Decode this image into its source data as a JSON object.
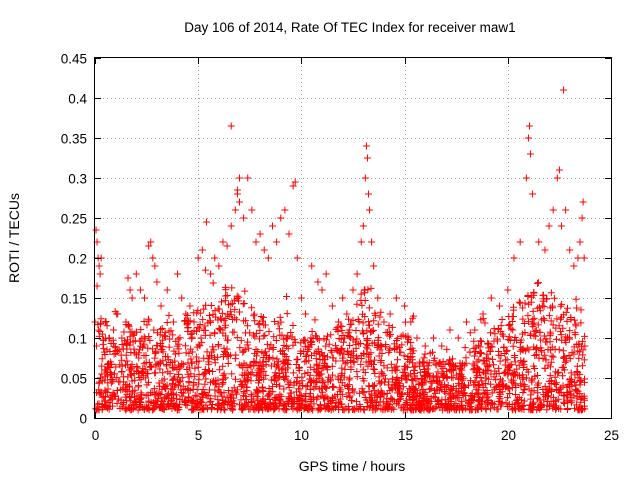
{
  "chart_data": {
    "type": "scatter",
    "title": "Day 106 of 2014, Rate Of TEC Index for receiver maw1",
    "xlabel": "GPS time / hours",
    "ylabel": "ROTI / TECUs",
    "xlim": [
      0,
      25
    ],
    "ylim": [
      0,
      0.45
    ],
    "xticks": [
      0,
      5,
      10,
      15,
      20,
      25
    ],
    "yticks": [
      0,
      0.05,
      0.1,
      0.15,
      0.2,
      0.25,
      0.3,
      0.35,
      0.4,
      0.45
    ],
    "xtick_labels": [
      "0",
      "5",
      "10",
      "15",
      "20",
      "25"
    ],
    "ytick_labels": [
      "0",
      "0.05",
      "0.1",
      "0.15",
      "0.2",
      "0.25",
      "0.3",
      "0.35",
      "0.4",
      "0.45"
    ],
    "grid": true,
    "marker": "+",
    "color": "#ff0000",
    "series": [
      {
        "name": "ROTI",
        "points": [
          [
            0.05,
            0.235
          ],
          [
            0.1,
            0.22
          ],
          [
            0.15,
            0.2
          ],
          [
            0.2,
            0.19
          ],
          [
            0.1,
            0.165
          ],
          [
            0.25,
            0.18
          ],
          [
            0.3,
            0.2
          ],
          [
            0.0,
            0.12
          ],
          [
            0.5,
            0.12
          ],
          [
            0.7,
            0.1
          ],
          [
            0.9,
            0.11
          ],
          [
            1.1,
            0.13
          ],
          [
            1.3,
            0.1
          ],
          [
            1.5,
            0.12
          ],
          [
            1.6,
            0.175
          ],
          [
            1.7,
            0.16
          ],
          [
            1.8,
            0.15
          ],
          [
            2.0,
            0.18
          ],
          [
            2.2,
            0.16
          ],
          [
            2.4,
            0.15
          ],
          [
            2.6,
            0.215
          ],
          [
            2.7,
            0.22
          ],
          [
            2.8,
            0.2
          ],
          [
            2.9,
            0.19
          ],
          [
            3.0,
            0.17
          ],
          [
            3.2,
            0.14
          ],
          [
            3.5,
            0.16
          ],
          [
            3.8,
            0.12
          ],
          [
            4.0,
            0.18
          ],
          [
            4.2,
            0.15
          ],
          [
            4.4,
            0.13
          ],
          [
            4.6,
            0.14
          ],
          [
            4.8,
            0.12
          ],
          [
            5.0,
            0.2
          ],
          [
            5.2,
            0.21
          ],
          [
            5.4,
            0.245
          ],
          [
            5.6,
            0.18
          ],
          [
            5.8,
            0.2
          ],
          [
            6.0,
            0.19
          ],
          [
            6.2,
            0.22
          ],
          [
            6.4,
            0.215
          ],
          [
            6.6,
            0.24
          ],
          [
            6.8,
            0.26
          ],
          [
            6.9,
            0.285
          ],
          [
            7.0,
            0.27
          ],
          [
            7.2,
            0.25
          ],
          [
            7.4,
            0.3
          ],
          [
            7.6,
            0.26
          ],
          [
            7.8,
            0.22
          ],
          [
            8.0,
            0.23
          ],
          [
            8.2,
            0.21
          ],
          [
            8.4,
            0.2
          ],
          [
            8.6,
            0.24
          ],
          [
            8.8,
            0.22
          ],
          [
            9.0,
            0.25
          ],
          [
            9.2,
            0.26
          ],
          [
            9.4,
            0.23
          ],
          [
            9.6,
            0.29
          ],
          [
            9.7,
            0.295
          ],
          [
            9.8,
            0.2
          ],
          [
            10.0,
            0.15
          ],
          [
            10.2,
            0.13
          ],
          [
            10.5,
            0.19
          ],
          [
            10.8,
            0.17
          ],
          [
            11.0,
            0.16
          ],
          [
            11.2,
            0.18
          ],
          [
            11.5,
            0.14
          ],
          [
            11.8,
            0.12
          ],
          [
            12.0,
            0.15
          ],
          [
            12.2,
            0.13
          ],
          [
            12.5,
            0.16
          ],
          [
            12.7,
            0.18
          ],
          [
            12.9,
            0.22
          ],
          [
            13.0,
            0.24
          ],
          [
            13.1,
            0.3
          ],
          [
            13.15,
            0.34
          ],
          [
            13.2,
            0.325
          ],
          [
            13.25,
            0.28
          ],
          [
            13.3,
            0.26
          ],
          [
            13.4,
            0.22
          ],
          [
            13.5,
            0.19
          ],
          [
            13.7,
            0.15
          ],
          [
            14.0,
            0.12
          ],
          [
            14.3,
            0.13
          ],
          [
            14.6,
            0.15
          ],
          [
            15.0,
            0.14
          ],
          [
            15.3,
            0.12
          ],
          [
            15.6,
            0.1
          ],
          [
            16.0,
            0.09
          ],
          [
            16.4,
            0.1
          ],
          [
            16.8,
            0.09
          ],
          [
            17.2,
            0.11
          ],
          [
            17.6,
            0.1
          ],
          [
            18.0,
            0.12
          ],
          [
            18.4,
            0.11
          ],
          [
            18.8,
            0.13
          ],
          [
            19.2,
            0.15
          ],
          [
            19.6,
            0.14
          ],
          [
            20.0,
            0.16
          ],
          [
            20.3,
            0.2
          ],
          [
            20.6,
            0.22
          ],
          [
            20.9,
            0.3
          ],
          [
            21.0,
            0.35
          ],
          [
            21.05,
            0.365
          ],
          [
            21.1,
            0.33
          ],
          [
            21.2,
            0.28
          ],
          [
            21.5,
            0.22
          ],
          [
            21.8,
            0.21
          ],
          [
            22.0,
            0.24
          ],
          [
            22.2,
            0.26
          ],
          [
            22.4,
            0.3
          ],
          [
            22.5,
            0.31
          ],
          [
            22.6,
            0.24
          ],
          [
            22.7,
            0.41
          ],
          [
            22.8,
            0.26
          ],
          [
            23.0,
            0.21
          ],
          [
            23.2,
            0.19
          ],
          [
            23.4,
            0.2
          ],
          [
            23.5,
            0.22
          ],
          [
            23.6,
            0.25
          ],
          [
            23.65,
            0.27
          ],
          [
            23.7,
            0.2
          ],
          [
            6.6,
            0.365
          ],
          [
            7.0,
            0.3
          ],
          [
            6.9,
            0.28
          ]
        ]
      }
    ],
    "density": {
      "hours": [
        0,
        0.5,
        1,
        1.5,
        2,
        2.5,
        3,
        3.5,
        4,
        4.5,
        5,
        5.5,
        6,
        6.5,
        7,
        7.5,
        8,
        8.5,
        9,
        9.5,
        10,
        10.5,
        11,
        11.5,
        12,
        12.5,
        13,
        13.5,
        14,
        14.5,
        15,
        15.5,
        16,
        16.5,
        17,
        17.5,
        18,
        18.5,
        19,
        19.5,
        20,
        20.5,
        21,
        21.5,
        22,
        22.5,
        23,
        23.5
      ],
      "upper_envelope": [
        0.16,
        0.1,
        0.1,
        0.12,
        0.11,
        0.13,
        0.11,
        0.12,
        0.12,
        0.13,
        0.14,
        0.15,
        0.16,
        0.17,
        0.16,
        0.14,
        0.13,
        0.12,
        0.13,
        0.12,
        0.1,
        0.11,
        0.1,
        0.11,
        0.12,
        0.13,
        0.17,
        0.14,
        0.12,
        0.1,
        0.11,
        0.09,
        0.08,
        0.08,
        0.07,
        0.08,
        0.08,
        0.09,
        0.11,
        0.12,
        0.13,
        0.15,
        0.16,
        0.17,
        0.16,
        0.15,
        0.14,
        0.12
      ],
      "floor": 0.01
    }
  }
}
